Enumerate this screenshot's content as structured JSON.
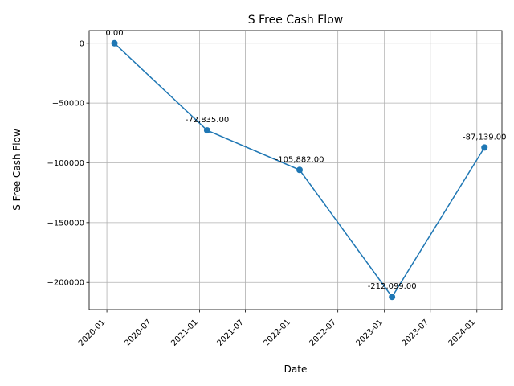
{
  "chart_data": {
    "type": "line",
    "title": "S Free Cash Flow",
    "xlabel": "Date",
    "ylabel": "S Free Cash Flow",
    "x_axis": "date",
    "x": [
      "2020-01-31",
      "2021-01-31",
      "2022-01-31",
      "2023-01-31",
      "2024-01-31"
    ],
    "series": [
      {
        "values": [
          0,
          -72835,
          -105882,
          -212099,
          -87139
        ],
        "color": "#1f77b4",
        "marker": "circle"
      }
    ],
    "data_labels": [
      "0.00",
      "-72,835.00",
      "-105,882.00",
      "-212,099.00",
      "-87,139.00"
    ],
    "x_ticks": [
      "2020-01",
      "2020-07",
      "2021-01",
      "2021-07",
      "2022-01",
      "2022-07",
      "2023-01",
      "2023-07",
      "2024-01"
    ],
    "x_tick_dates": [
      "2020-01-01",
      "2020-07-01",
      "2021-01-01",
      "2021-07-01",
      "2022-01-01",
      "2022-07-01",
      "2023-01-01",
      "2023-07-01",
      "2024-01-01"
    ],
    "y_ticks": [
      "0",
      "−50000",
      "−100000",
      "−150000",
      "−200000"
    ],
    "y_tick_values": [
      0,
      -50000,
      -100000,
      -150000,
      -200000
    ],
    "xlim": [
      "2019-10-23",
      "2024-04-09"
    ],
    "ylim": [
      -222704,
      10605
    ],
    "grid": true,
    "legend": null
  }
}
